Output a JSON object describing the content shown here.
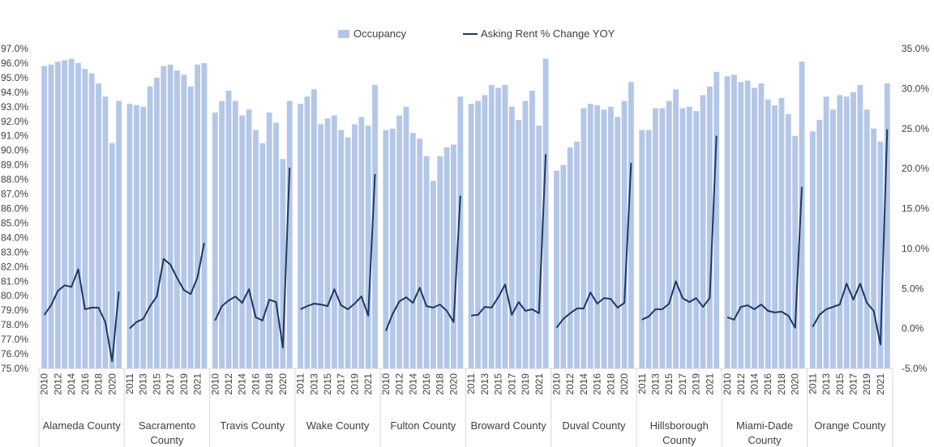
{
  "chart_data": {
    "type": "bar-line-combo",
    "legend": {
      "occupancy": "Occupancy",
      "rent": "Asking Rent % Change YOY"
    },
    "left_axis": {
      "label": "Occupancy",
      "min": 75.0,
      "max": 97.0,
      "step": 1.0,
      "ticks": [
        "75.0%",
        "76.0%",
        "77.0%",
        "78.0%",
        "79.0%",
        "80.0%",
        "81.0%",
        "82.0%",
        "83.0%",
        "84.0%",
        "85.0%",
        "86.0%",
        "87.0%",
        "88.0%",
        "89.0%",
        "90.0%",
        "91.0%",
        "92.0%",
        "93.0%",
        "94.0%",
        "95.0%",
        "96.0%",
        "97.0%"
      ]
    },
    "right_axis": {
      "label": "Asking Rent % Change YOY",
      "min": -5.0,
      "max": 35.0,
      "step": 5.0,
      "ticks": [
        "-5.0%",
        "0.0%",
        "5.0%",
        "10.0%",
        "15.0%",
        "20.0%",
        "25.0%",
        "30.0%",
        "35.0%"
      ]
    },
    "groups": [
      {
        "name": "Alameda County",
        "label_lines": [
          "Alameda County"
        ],
        "year_labels": [
          "2010",
          "2012",
          "2014",
          "2016",
          "2018",
          "2020"
        ],
        "occupancy": [
          95.8,
          95.9,
          96.1,
          96.2,
          96.3,
          96.0,
          95.6,
          95.3,
          94.6,
          93.7,
          90.5,
          93.4
        ],
        "rent_change": [
          1.7,
          2.9,
          4.7,
          5.4,
          5.2,
          7.4,
          2.4,
          2.6,
          2.6,
          0.8,
          -4.1,
          4.6
        ]
      },
      {
        "name": "Sacramento County",
        "label_lines": [
          "Sacramento",
          "County"
        ],
        "year_labels": [
          "2011",
          "2013",
          "2015",
          "2017",
          "2019",
          "2021"
        ],
        "occupancy": [
          93.2,
          93.1,
          93.0,
          94.4,
          95.0,
          95.8,
          95.9,
          95.5,
          95.2,
          94.4,
          95.9,
          96.0
        ],
        "rent_change": [
          0.0,
          0.8,
          1.2,
          2.8,
          4.0,
          8.7,
          8.0,
          6.3,
          4.8,
          4.3,
          6.4,
          10.7
        ]
      },
      {
        "name": "Travis County",
        "label_lines": [
          "Travis County"
        ],
        "year_labels": [
          "2010",
          "2012",
          "2014",
          "2016",
          "2018",
          "2020"
        ],
        "occupancy": [
          92.6,
          93.4,
          94.1,
          93.4,
          92.4,
          92.8,
          91.4,
          90.5,
          92.6,
          91.9,
          89.4,
          93.4
        ],
        "rent_change": [
          1.0,
          2.8,
          3.5,
          4.0,
          3.2,
          4.9,
          1.4,
          1.0,
          3.6,
          3.3,
          -2.4,
          20.1
        ]
      },
      {
        "name": "Wake County",
        "label_lines": [
          "Wake County"
        ],
        "year_labels": [
          "2011",
          "2013",
          "2015",
          "2017",
          "2019",
          "2021"
        ],
        "occupancy": [
          93.2,
          93.7,
          94.2,
          91.8,
          92.2,
          92.4,
          91.4,
          90.9,
          91.8,
          92.3,
          91.7,
          94.5
        ],
        "rent_change": [
          2.4,
          2.8,
          3.1,
          3.0,
          2.8,
          4.9,
          2.9,
          2.4,
          3.1,
          4.0,
          1.6,
          19.3
        ]
      },
      {
        "name": "Fulton County",
        "label_lines": [
          "Fulton County"
        ],
        "year_labels": [
          "2010",
          "2012",
          "2014",
          "2016",
          "2018",
          "2020"
        ],
        "occupancy": [
          91.4,
          91.5,
          92.4,
          93.0,
          91.2,
          90.8,
          89.6,
          87.9,
          89.6,
          90.2,
          90.4,
          93.7
        ],
        "rent_change": [
          -0.3,
          1.8,
          3.4,
          3.9,
          3.2,
          5.1,
          2.8,
          2.6,
          3.0,
          2.2,
          0.8,
          16.6
        ]
      },
      {
        "name": "Broward County",
        "label_lines": [
          "Broward County"
        ],
        "year_labels": [
          "2011",
          "2013",
          "2015",
          "2017",
          "2019",
          "2021"
        ],
        "occupancy": [
          93.2,
          93.4,
          93.8,
          94.5,
          94.3,
          94.5,
          93.0,
          92.1,
          93.4,
          94.1,
          91.7,
          96.3
        ],
        "rent_change": [
          1.6,
          1.7,
          2.7,
          2.6,
          3.9,
          5.5,
          1.7,
          3.3,
          2.2,
          2.4,
          1.9,
          21.8
        ]
      },
      {
        "name": "Duval County",
        "label_lines": [
          "Duval County"
        ],
        "year_labels": [
          "2010",
          "2012",
          "2014",
          "2016",
          "2018",
          "2020"
        ],
        "occupancy": [
          88.6,
          89.0,
          90.2,
          90.6,
          92.9,
          93.2,
          93.1,
          92.8,
          93.0,
          92.3,
          93.4,
          94.7
        ],
        "rent_change": [
          0.1,
          1.2,
          1.9,
          2.5,
          2.5,
          4.5,
          3.1,
          3.8,
          3.7,
          2.6,
          3.2,
          20.7
        ]
      },
      {
        "name": "Hillsborough County",
        "label_lines": [
          "Hillsborough",
          "County"
        ],
        "year_labels": [
          "2011",
          "2013",
          "2015",
          "2017",
          "2019",
          "2021"
        ],
        "occupancy": [
          91.4,
          91.4,
          92.9,
          92.9,
          93.4,
          94.2,
          92.9,
          93.0,
          92.7,
          93.8,
          94.4,
          95.4
        ],
        "rent_change": [
          1.1,
          1.5,
          2.4,
          2.4,
          3.1,
          5.9,
          3.8,
          3.3,
          3.8,
          2.7,
          3.8,
          24.1
        ]
      },
      {
        "name": "Miami-Dade County",
        "label_lines": [
          "Miami-Dade",
          "County"
        ],
        "year_labels": [
          "2010",
          "2012",
          "2014",
          "2016",
          "2018",
          "2020"
        ],
        "occupancy": [
          95.1,
          95.2,
          94.7,
          94.8,
          94.3,
          94.6,
          93.5,
          93.1,
          93.6,
          92.5,
          91.0,
          96.1
        ],
        "rent_change": [
          1.4,
          1.1,
          2.7,
          2.9,
          2.4,
          3.0,
          2.2,
          2.0,
          2.1,
          1.6,
          0.1,
          17.7
        ]
      },
      {
        "name": "Orange County",
        "label_lines": [
          "Orange County"
        ],
        "year_labels": [
          "2011",
          "2013",
          "2015",
          "2017",
          "2019",
          "2021"
        ],
        "occupancy": [
          91.3,
          92.1,
          93.7,
          92.8,
          93.8,
          93.7,
          94.0,
          94.5,
          92.8,
          91.5,
          90.6,
          94.6
        ],
        "rent_change": [
          0.2,
          1.7,
          2.4,
          2.7,
          3.0,
          5.6,
          3.6,
          5.6,
          3.2,
          2.2,
          -2.0,
          24.9
        ]
      }
    ]
  }
}
